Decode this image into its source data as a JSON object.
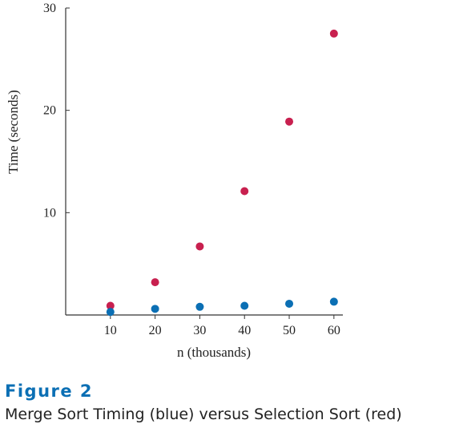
{
  "figure": {
    "label": "Figure 2",
    "caption": "Merge Sort Timing (blue) versus Selection Sort (red)"
  },
  "chart_data": {
    "type": "scatter",
    "xlabel": "n (thousands)",
    "ylabel": "Time (seconds)",
    "xlim": [
      0,
      62
    ],
    "ylim": [
      0,
      30
    ],
    "x_ticks": [
      10,
      20,
      30,
      40,
      50,
      60
    ],
    "y_ticks": [
      10,
      20,
      30
    ],
    "grid": false,
    "x": [
      10,
      20,
      30,
      40,
      50,
      60
    ],
    "series": [
      {
        "color": "#c8204f",
        "values": [
          0.9,
          3.2,
          6.7,
          12.1,
          18.9,
          27.5
        ]
      },
      {
        "color": "#0b6fb4",
        "values": [
          0.3,
          0.6,
          0.8,
          0.9,
          1.1,
          1.3
        ]
      }
    ]
  }
}
